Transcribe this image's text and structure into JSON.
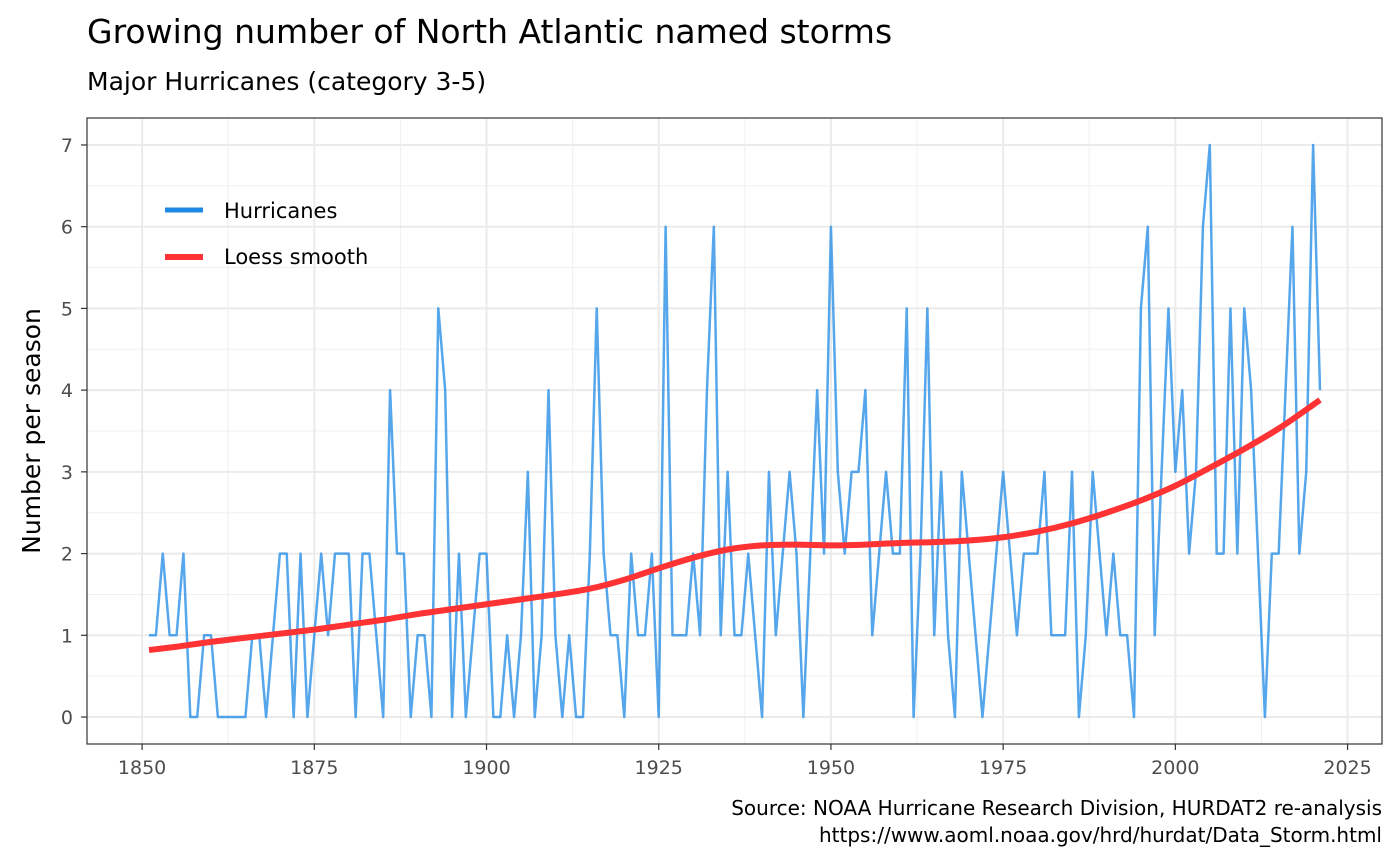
{
  "chart_data": {
    "type": "line",
    "title": "Growing number of North Atlantic named storms",
    "subtitle": "Major Hurricanes (category 3-5)",
    "xlabel": "",
    "ylabel": "Number per season",
    "xlim": [
      1842,
      2030
    ],
    "ylim": [
      -0.33,
      7.33
    ],
    "x_ticks": [
      1850,
      1875,
      1900,
      1925,
      1950,
      1975,
      2000,
      2025
    ],
    "y_ticks": [
      0,
      1,
      2,
      3,
      4,
      5,
      6,
      7
    ],
    "grid": true,
    "legend_position": "top-left",
    "caption": [
      "Source: NOAA Hurricane Research Division, HURDAT2 re-analysis",
      "https://www.aoml.noaa.gov/hrd/hurdat/Data_Storm.html"
    ],
    "colors": {
      "hurricanes": "#1e88e5",
      "loess": "#ff3333"
    },
    "series": [
      {
        "name": "Hurricanes",
        "x_start": 1851,
        "values": [
          1,
          1,
          2,
          1,
          1,
          2,
          0,
          0,
          1,
          1,
          0,
          0,
          0,
          0,
          0,
          1,
          1,
          0,
          1,
          2,
          2,
          0,
          2,
          0,
          1,
          2,
          1,
          2,
          2,
          2,
          0,
          2,
          2,
          1,
          0,
          4,
          2,
          2,
          0,
          1,
          1,
          0,
          5,
          4,
          0,
          2,
          0,
          1,
          2,
          2,
          0,
          0,
          1,
          0,
          1,
          3,
          0,
          1,
          4,
          1,
          0,
          1,
          0,
          0,
          2,
          5,
          2,
          1,
          1,
          0,
          2,
          1,
          1,
          2,
          0,
          6,
          1,
          1,
          1,
          2,
          1,
          4,
          6,
          1,
          3,
          1,
          1,
          2,
          1,
          0,
          3,
          1,
          2,
          3,
          2,
          0,
          2,
          4,
          2,
          6,
          3,
          2,
          3,
          3,
          4,
          1,
          2,
          3,
          2,
          2,
          5,
          0,
          2,
          5,
          1,
          3,
          1,
          0,
          3,
          2,
          1,
          0,
          1,
          2,
          3,
          2,
          1,
          2,
          2,
          2,
          3,
          1,
          1,
          1,
          3,
          0,
          1,
          3,
          2,
          1,
          2,
          1,
          1,
          0,
          5,
          6,
          1,
          3,
          5,
          3,
          4,
          2,
          3,
          6,
          7,
          2,
          2,
          5,
          2,
          5,
          4,
          2,
          0,
          2,
          2,
          4,
          6,
          2,
          3,
          7,
          4
        ]
      },
      {
        "name": "Loess smooth",
        "x": [
          1851,
          1855,
          1860,
          1865,
          1870,
          1875,
          1880,
          1885,
          1890,
          1895,
          1900,
          1905,
          1910,
          1915,
          1920,
          1925,
          1930,
          1935,
          1940,
          1945,
          1950,
          1955,
          1960,
          1965,
          1970,
          1975,
          1980,
          1985,
          1990,
          1995,
          2000,
          2005,
          2010,
          2015,
          2020,
          2021
        ],
        "values": [
          0.82,
          0.86,
          0.92,
          0.97,
          1.02,
          1.07,
          1.13,
          1.19,
          1.26,
          1.32,
          1.38,
          1.44,
          1.5,
          1.57,
          1.68,
          1.82,
          1.95,
          2.05,
          2.1,
          2.11,
          2.1,
          2.11,
          2.13,
          2.14,
          2.16,
          2.2,
          2.27,
          2.37,
          2.5,
          2.65,
          2.83,
          3.05,
          3.28,
          3.53,
          3.82,
          3.88
        ]
      }
    ]
  }
}
